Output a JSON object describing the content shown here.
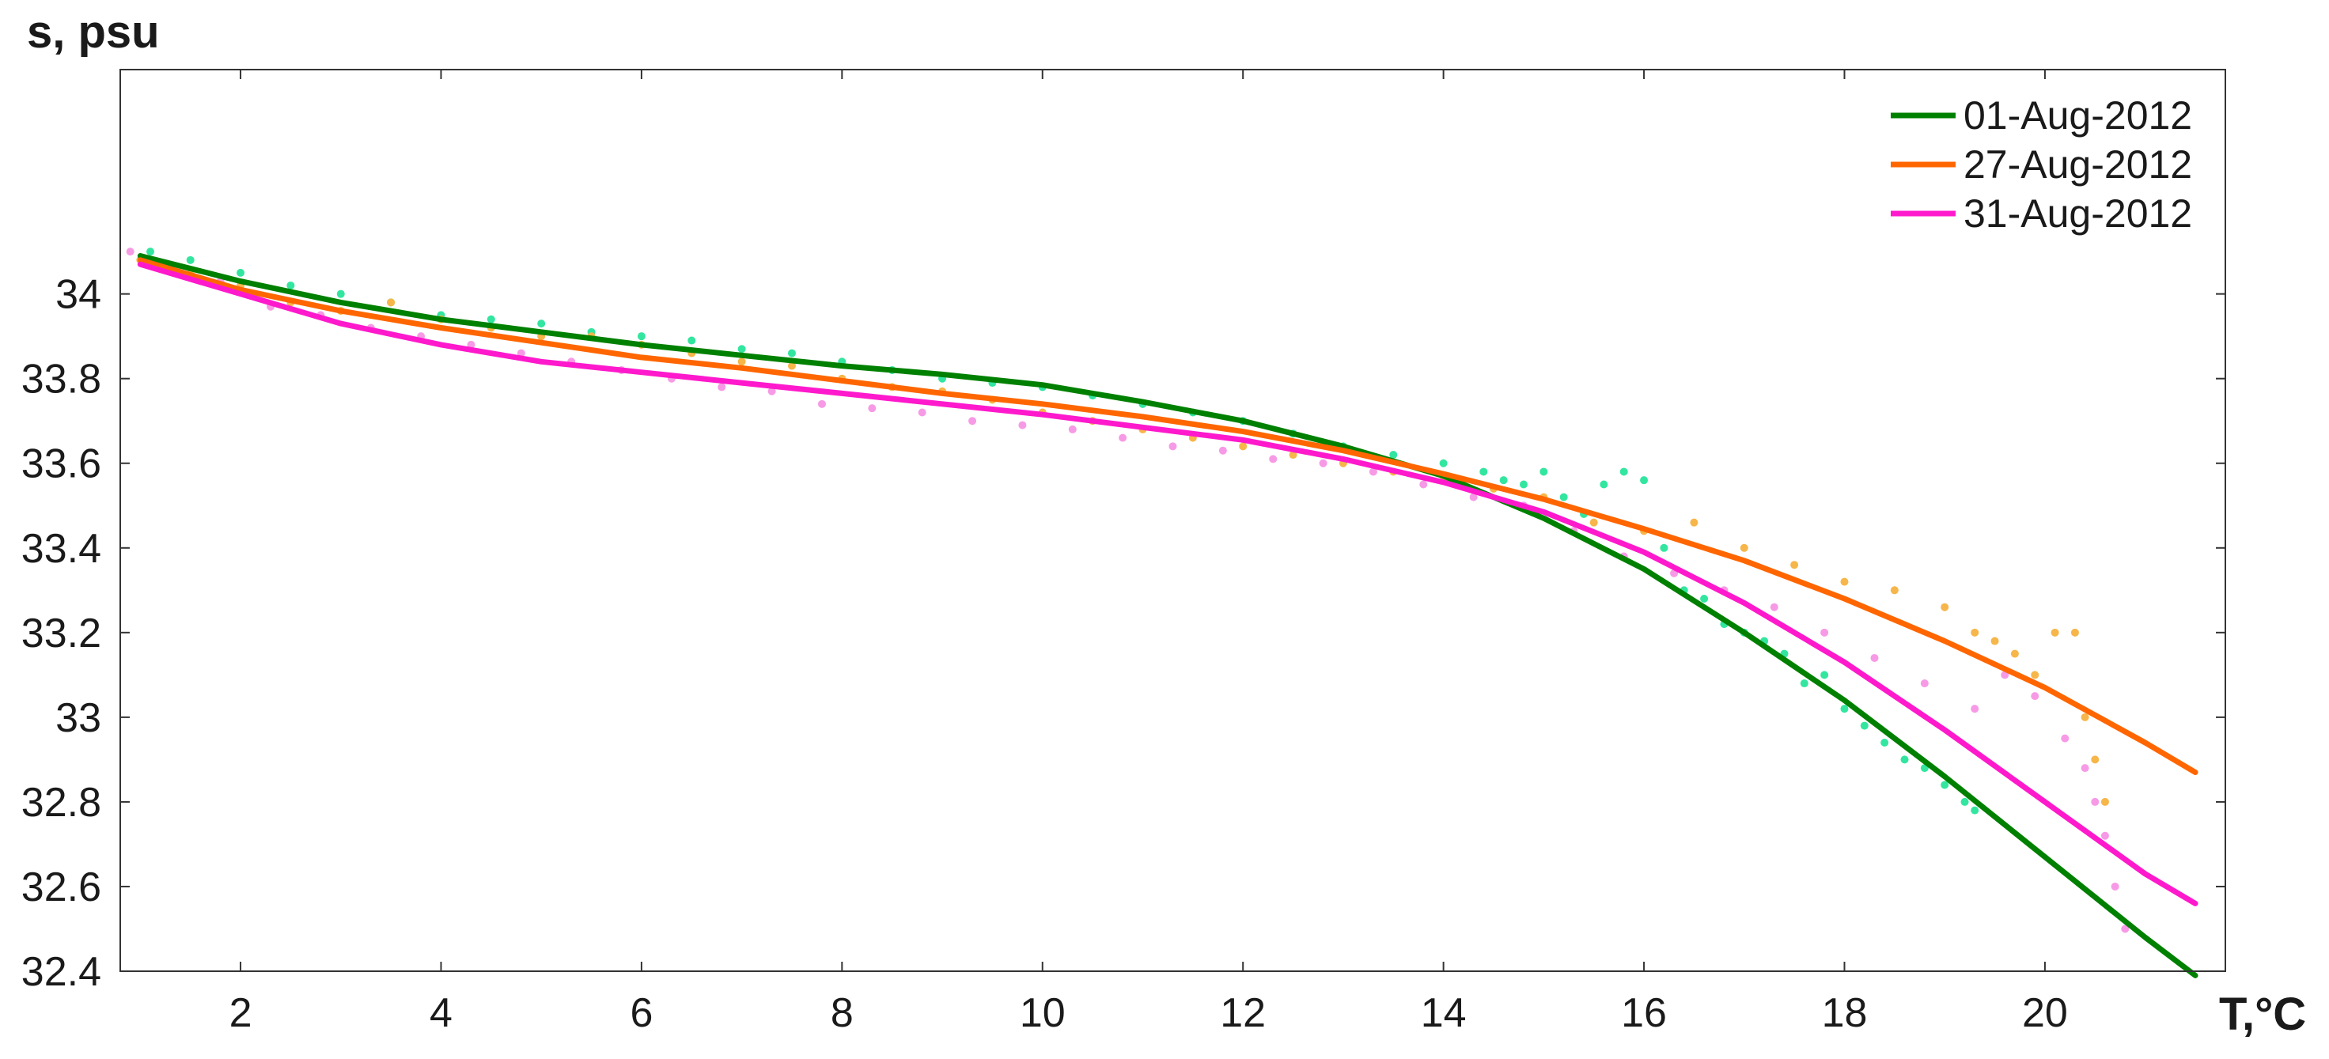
{
  "chart_data": {
    "type": "scatter",
    "title": "",
    "xlabel": "T,°C",
    "ylabel": "s, psu",
    "xlim": [
      0.8,
      21.8
    ],
    "ylim": [
      32.4,
      34.53
    ],
    "xticks": [
      2,
      4,
      6,
      8,
      10,
      12,
      14,
      16,
      18,
      20
    ],
    "yticks": [
      32.4,
      32.6,
      32.8,
      33,
      33.2,
      33.4,
      33.6,
      33.8,
      34
    ],
    "ytick_labels": [
      "32.4",
      "32.6",
      "32.8",
      "33",
      "33.2",
      "33.4",
      "33.6",
      "33.8",
      "34"
    ],
    "grid": false,
    "legend_position": "top-right",
    "series": [
      {
        "name": "01-Aug-2012",
        "line_color": "#008000",
        "point_color": "#33e6a0",
        "fit_x": [
          1.0,
          2,
          3,
          4,
          5,
          6,
          7,
          8,
          9,
          10,
          11,
          12,
          13,
          14,
          15,
          16,
          17,
          18,
          19,
          20,
          21,
          21.5
        ],
        "fit_y": [
          34.09,
          34.03,
          33.98,
          33.94,
          33.91,
          33.88,
          33.855,
          33.83,
          33.81,
          33.785,
          33.745,
          33.7,
          33.64,
          33.57,
          33.47,
          33.35,
          33.2,
          33.04,
          32.86,
          32.67,
          32.48,
          32.39
        ],
        "points_x": [
          1.1,
          1.5,
          2.0,
          2.5,
          3.0,
          3.5,
          4.0,
          4.5,
          5.0,
          5.5,
          6.0,
          6.5,
          7.0,
          7.5,
          8.0,
          8.5,
          9.0,
          9.5,
          10.0,
          10.5,
          11.0,
          11.5,
          12.0,
          12.5,
          13.0,
          13.5,
          14.0,
          14.4,
          14.6,
          14.8,
          15.0,
          15.2,
          15.4,
          15.6,
          15.8,
          16.0,
          16.2,
          16.4,
          16.6,
          16.8,
          17.0,
          17.2,
          17.4,
          17.6,
          17.8,
          18.0,
          18.2,
          18.4,
          18.6,
          18.8,
          19.0,
          19.2,
          19.3
        ],
        "points_y": [
          34.1,
          34.08,
          34.05,
          34.02,
          34.0,
          33.98,
          33.95,
          33.94,
          33.93,
          33.91,
          33.9,
          33.89,
          33.87,
          33.86,
          33.84,
          33.82,
          33.8,
          33.79,
          33.78,
          33.76,
          33.74,
          33.72,
          33.7,
          33.67,
          33.64,
          33.62,
          33.6,
          33.58,
          33.56,
          33.55,
          33.58,
          33.52,
          33.48,
          33.55,
          33.58,
          33.56,
          33.4,
          33.3,
          33.28,
          33.22,
          33.2,
          33.18,
          33.15,
          33.08,
          33.1,
          33.02,
          32.98,
          32.94,
          32.9,
          32.88,
          32.84,
          32.8,
          32.78
        ]
      },
      {
        "name": "27-Aug-2012",
        "line_color": "#ff6600",
        "point_color": "#f7b64a",
        "fit_x": [
          1.0,
          2,
          3,
          4,
          5,
          6,
          7,
          8,
          9,
          10,
          11,
          12,
          13,
          14,
          15,
          16,
          17,
          18,
          19,
          20,
          21,
          21.5
        ],
        "fit_y": [
          34.08,
          34.01,
          33.96,
          33.92,
          33.885,
          33.85,
          33.825,
          33.795,
          33.765,
          33.74,
          33.71,
          33.675,
          33.63,
          33.575,
          33.515,
          33.445,
          33.37,
          33.28,
          33.18,
          33.07,
          32.94,
          32.87
        ],
        "points_x": [
          1.0,
          1.5,
          2.0,
          2.5,
          3.0,
          3.5,
          4.0,
          4.5,
          5.0,
          5.5,
          6.0,
          6.5,
          7.0,
          7.5,
          8.0,
          8.5,
          9.0,
          9.5,
          10.0,
          10.5,
          11.0,
          11.5,
          12.0,
          12.5,
          13.0,
          13.5,
          14.0,
          14.5,
          15.0,
          15.5,
          16.0,
          16.5,
          17.0,
          17.5,
          18.0,
          18.5,
          19.0,
          19.3,
          19.5,
          19.7,
          19.9,
          20.1,
          20.3,
          20.4,
          20.5,
          20.6
        ],
        "points_y": [
          34.08,
          34.05,
          34.02,
          33.98,
          33.96,
          33.98,
          33.94,
          33.92,
          33.9,
          33.9,
          33.88,
          33.86,
          33.84,
          33.83,
          33.8,
          33.78,
          33.77,
          33.75,
          33.72,
          33.7,
          33.68,
          33.66,
          33.64,
          33.62,
          33.6,
          33.58,
          33.56,
          33.54,
          33.52,
          33.46,
          33.44,
          33.46,
          33.4,
          33.36,
          33.32,
          33.3,
          33.26,
          33.2,
          33.18,
          33.15,
          33.1,
          33.2,
          33.2,
          33.0,
          32.9,
          32.8
        ]
      },
      {
        "name": "31-Aug-2012",
        "line_color": "#ff19cc",
        "point_color": "#f79ae6",
        "fit_x": [
          1.0,
          2,
          3,
          4,
          5,
          6,
          7,
          8,
          9,
          10,
          11,
          12,
          13,
          14,
          15,
          16,
          17,
          18,
          19,
          20,
          21,
          21.5
        ],
        "fit_y": [
          34.07,
          34.0,
          33.93,
          33.88,
          33.84,
          33.815,
          33.79,
          33.765,
          33.74,
          33.715,
          33.685,
          33.655,
          33.61,
          33.555,
          33.485,
          33.39,
          33.27,
          33.13,
          32.97,
          32.8,
          32.63,
          32.56
        ],
        "points_x": [
          0.9,
          1.3,
          1.8,
          2.3,
          2.8,
          3.3,
          3.8,
          4.3,
          4.8,
          5.3,
          5.8,
          6.3,
          6.8,
          7.3,
          7.8,
          8.3,
          8.8,
          9.3,
          9.8,
          10.3,
          10.8,
          11.3,
          11.8,
          12.3,
          12.8,
          13.3,
          13.8,
          14.3,
          14.8,
          15.3,
          15.8,
          16.3,
          16.8,
          17.3,
          17.8,
          18.3,
          18.8,
          19.3,
          19.6,
          19.9,
          20.2,
          20.4,
          20.5,
          20.6,
          20.7,
          20.8
        ],
        "points_y": [
          34.1,
          34.06,
          34.03,
          33.97,
          33.95,
          33.92,
          33.9,
          33.88,
          33.86,
          33.84,
          33.82,
          33.8,
          33.78,
          33.77,
          33.74,
          33.73,
          33.72,
          33.7,
          33.69,
          33.68,
          33.66,
          33.64,
          33.63,
          33.61,
          33.6,
          33.58,
          33.55,
          33.52,
          33.5,
          33.44,
          33.38,
          33.34,
          33.3,
          33.26,
          33.2,
          33.14,
          33.08,
          33.02,
          33.1,
          33.05,
          32.95,
          32.88,
          32.8,
          32.72,
          32.6,
          32.5
        ]
      }
    ]
  }
}
